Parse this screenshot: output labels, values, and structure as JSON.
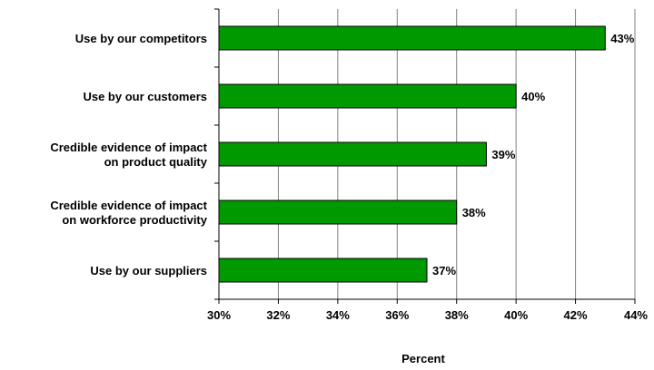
{
  "chart_data": {
    "type": "bar",
    "orientation": "horizontal",
    "categories": [
      [
        "Use by our competitors"
      ],
      [
        "Use by our customers"
      ],
      [
        "Credible evidence of impact",
        "on product quality"
      ],
      [
        "Credible evidence of impact",
        "on workforce productivity"
      ],
      [
        "Use by our suppliers"
      ]
    ],
    "values": [
      43,
      40,
      39,
      38,
      37
    ],
    "data_labels": [
      "43%",
      "40%",
      "39%",
      "38%",
      "37%"
    ],
    "xlim": [
      30,
      44
    ],
    "x_ticks": [
      30,
      32,
      34,
      36,
      38,
      40,
      42,
      44
    ],
    "x_tick_labels": [
      "30%",
      "32%",
      "34%",
      "36%",
      "38%",
      "40%",
      "42%",
      "44%"
    ],
    "xlabel": "Percent",
    "ylabel": "",
    "title": "",
    "grid": "vertical",
    "legend": "none",
    "colors": {
      "bar_fill": "#009900",
      "bar_stroke": "#000000",
      "grid": "#808080",
      "axis": "#000000"
    }
  }
}
